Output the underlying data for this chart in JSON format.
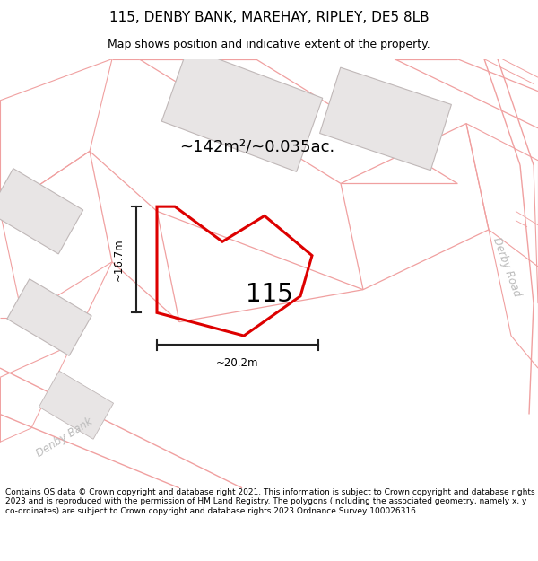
{
  "title": "115, DENBY BANK, MAREHAY, RIPLEY, DE5 8LB",
  "subtitle": "Map shows position and indicative extent of the property.",
  "footer": "Contains OS data © Crown copyright and database right 2021. This information is subject to Crown copyright and database rights 2023 and is reproduced with the permission of HM Land Registry. The polygons (including the associated geometry, namely x, y co-ordinates) are subject to Crown copyright and database rights 2023 Ordnance Survey 100026316.",
  "area_label": "~142m²/~0.035ac.",
  "number_label": "115",
  "dim_h_label": "~16.7m",
  "dim_w_label": "~20.2m",
  "map_bg": "#f7f5f5",
  "road_color": "#f0a0a0",
  "building_fill": "#e8e4e4",
  "building_stroke": "#c8bcbc",
  "cadastral_color": "#e8b0b0",
  "cadastral_stroke": 0.7,
  "plot_color": "#dd0000",
  "plot_linewidth": 2.2,
  "dim_color": "#222222",
  "road_label_color": "#bbbbbb",
  "title_fontsize": 11,
  "subtitle_fontsize": 9,
  "footer_fontsize": 6.5,
  "title_bg": "#ffffff"
}
